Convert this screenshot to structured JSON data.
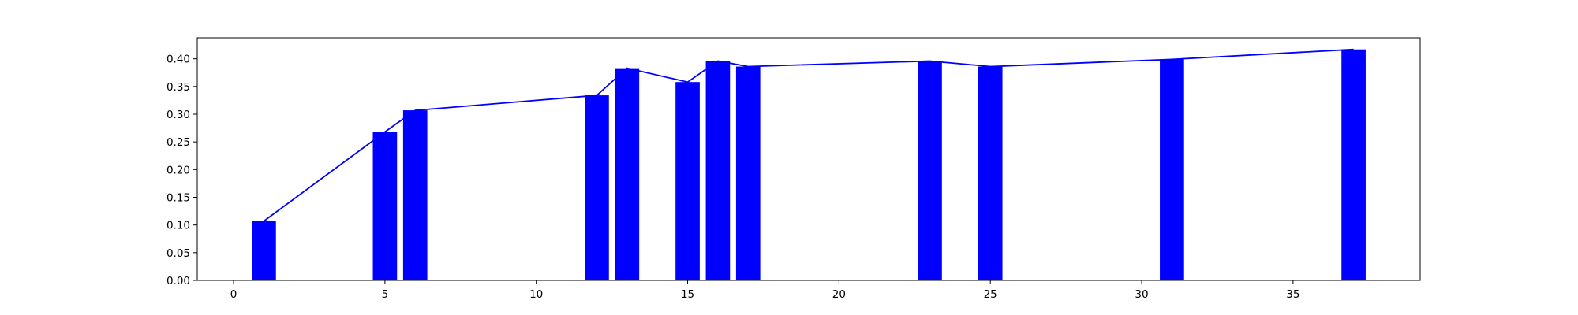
{
  "chart_data": {
    "type": "bar",
    "bar_color": "#0000ff",
    "line_color": "#0000ff",
    "x": [
      1,
      5,
      6,
      12,
      13,
      15,
      16,
      17,
      23,
      25,
      31,
      37
    ],
    "values": [
      0.107,
      0.268,
      0.307,
      0.334,
      0.383,
      0.358,
      0.396,
      0.386,
      0.396,
      0.386,
      0.399,
      0.417
    ],
    "overlay": {
      "type": "line",
      "x": [
        1,
        5,
        6,
        12,
        13,
        15,
        16,
        17,
        23,
        25,
        31,
        37
      ],
      "values": [
        0.107,
        0.268,
        0.307,
        0.334,
        0.383,
        0.358,
        0.396,
        0.386,
        0.396,
        0.386,
        0.399,
        0.417
      ]
    },
    "xlim": [
      -1.2,
      39.2
    ],
    "ylim": [
      0,
      0.4379
    ],
    "xticks": [
      0,
      5,
      10,
      15,
      20,
      25,
      30,
      35
    ],
    "xtick_labels": [
      "0",
      "5",
      "10",
      "15",
      "20",
      "25",
      "30",
      "35"
    ],
    "yticks": [
      0,
      0.05,
      0.1,
      0.15,
      0.2,
      0.25,
      0.3,
      0.35,
      0.4
    ],
    "ytick_labels": [
      "0.00",
      "0.05",
      "0.10",
      "0.15",
      "0.20",
      "0.25",
      "0.30",
      "0.35",
      "0.40"
    ],
    "bar_width": 0.8,
    "title": "",
    "xlabel": "",
    "ylabel": "",
    "grid": false,
    "legend": "none"
  }
}
